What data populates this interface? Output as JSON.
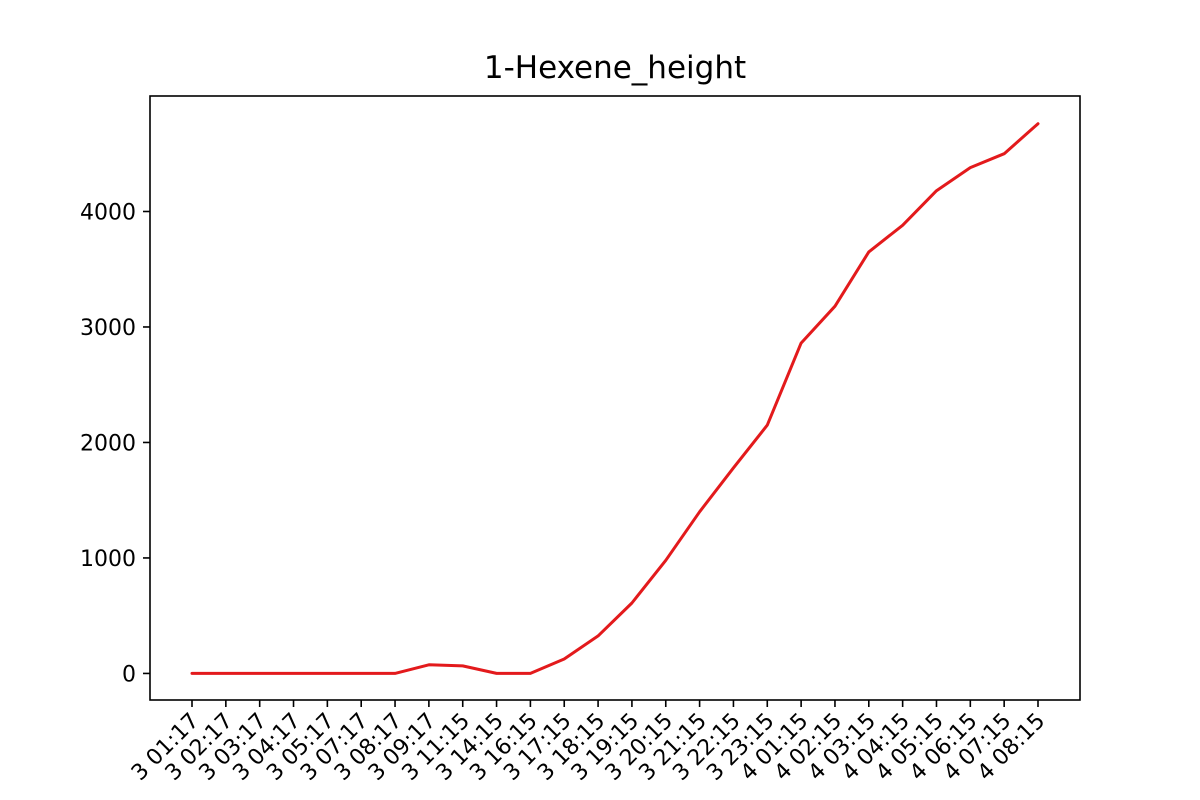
{
  "chart_data": {
    "type": "line",
    "title": "1-Hexene_height",
    "xlabel": "",
    "ylabel": "",
    "ylim": [
      -230,
      5000
    ],
    "yticks": [
      0,
      1000,
      2000,
      3000,
      4000
    ],
    "grid": false,
    "legend": "none",
    "categories": [
      "3 01:17",
      "3 02:17",
      "3 03:17",
      "3 04:17",
      "3 05:17",
      "3 07:17",
      "3 08:17",
      "3 09:17",
      "3 11:15",
      "3 14:15",
      "3 16:15",
      "3 17:15",
      "3 18:15",
      "3 19:15",
      "3 20:15",
      "3 21:15",
      "3 22:15",
      "3 23:15",
      "4 01:15",
      "4 02:15",
      "4 03:15",
      "4 04:15",
      "4 05:15",
      "4 06:15",
      "4 07:15",
      "4 08:15"
    ],
    "series": [
      {
        "color": "#e31a1c",
        "values": [
          0,
          0,
          0,
          0,
          0,
          0,
          0,
          75,
          65,
          0,
          0,
          125,
          325,
          610,
          980,
          1400,
          1780,
          2150,
          2860,
          3180,
          3650,
          3880,
          4180,
          4380,
          4500,
          4760
        ]
      }
    ]
  }
}
